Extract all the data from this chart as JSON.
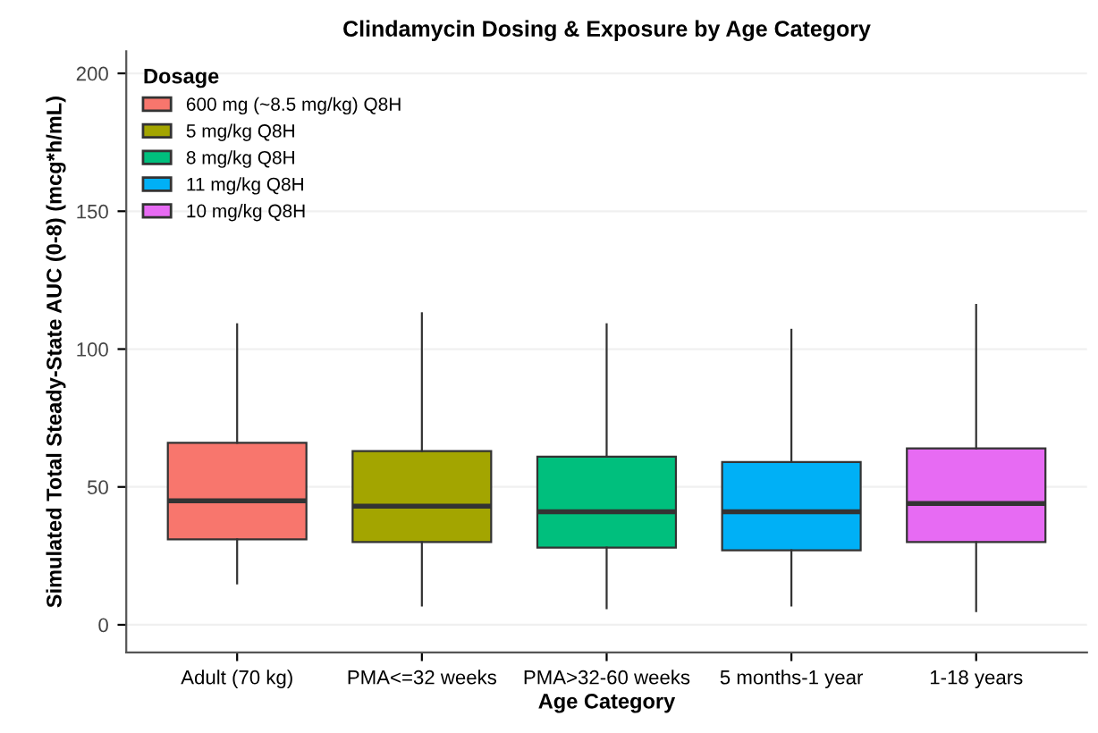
{
  "chart_data": {
    "type": "box",
    "title": "Clindamycin Dosing & Exposure by Age Category",
    "xlabel": "Age Category",
    "ylabel": "Simulated Total Steady-State AUC (0-8) (mcg*h/mL)",
    "legend_title": "Dosage",
    "categories": [
      "Adult (70 kg)",
      "PMA<=32 weeks",
      "PMA>32-60 weeks",
      "5 months-1 year",
      "1-18 years"
    ],
    "series": [
      {
        "name": "600 mg (~8.5 mg/kg) Q8H",
        "color": "#f8766d",
        "boxes": [
          {
            "low": 15,
            "q1": 31,
            "median": 45,
            "q3": 66,
            "high": 109
          },
          null,
          null,
          null,
          null
        ]
      },
      {
        "name": "5 mg/kg Q8H",
        "color": "#a3a500",
        "boxes": [
          null,
          {
            "low": 7,
            "q1": 30,
            "median": 43,
            "q3": 63,
            "high": 113
          },
          null,
          null,
          null
        ]
      },
      {
        "name": "8 mg/kg Q8H",
        "color": "#00bf7d",
        "boxes": [
          null,
          null,
          {
            "low": 6,
            "q1": 28,
            "median": 41,
            "q3": 61,
            "high": 109
          },
          null,
          null
        ]
      },
      {
        "name": "11 mg/kg Q8H",
        "color": "#00b0f6",
        "boxes": [
          null,
          null,
          null,
          {
            "low": 7,
            "q1": 27,
            "median": 41,
            "q3": 59,
            "high": 107
          },
          null
        ]
      },
      {
        "name": "10 mg/kg Q8H",
        "color": "#e76bf3",
        "boxes": [
          null,
          null,
          null,
          null,
          {
            "low": 5,
            "q1": 30,
            "median": 44,
            "q3": 64,
            "high": 116
          }
        ]
      }
    ],
    "ylim": [
      -10,
      208
    ],
    "yticks": [
      0,
      50,
      100,
      150,
      200
    ],
    "grid": "y",
    "legend": "top left"
  }
}
